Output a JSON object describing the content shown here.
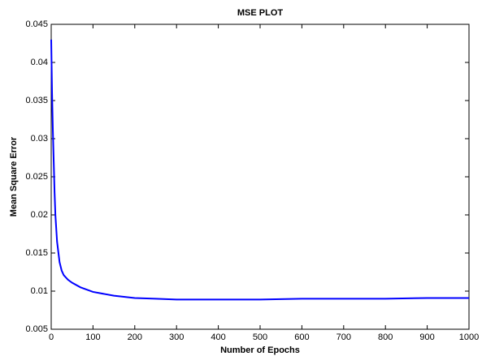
{
  "chart_data": {
    "type": "line",
    "title": "MSE PLOT",
    "x_label": "Number of Epochs",
    "y_label": "Mean Square Error",
    "x": [
      0,
      2,
      4,
      6,
      8,
      10,
      14,
      20,
      25,
      30,
      40,
      50,
      70,
      100,
      150,
      200,
      250,
      300,
      400,
      500,
      600,
      700,
      800,
      900,
      1000
    ],
    "series": [
      {
        "name": "MSE",
        "color": "#0000ff",
        "values": [
          0.043,
          0.036,
          0.031,
          0.027,
          0.023,
          0.02,
          0.0165,
          0.0138,
          0.0127,
          0.0121,
          0.0115,
          0.0111,
          0.0105,
          0.0099,
          0.0094,
          0.0091,
          0.009,
          0.0089,
          0.0089,
          0.0089,
          0.009,
          0.009,
          0.009,
          0.0091,
          0.0091
        ]
      }
    ],
    "xlim": [
      0,
      1000
    ],
    "xticks": [
      0,
      100,
      200,
      300,
      400,
      500,
      600,
      700,
      800,
      900,
      1000
    ],
    "ylim": [
      0.005,
      0.045
    ],
    "yticks": [
      0.005,
      0.01,
      0.015,
      0.02,
      0.025,
      0.03,
      0.035,
      0.04,
      0.045
    ]
  }
}
